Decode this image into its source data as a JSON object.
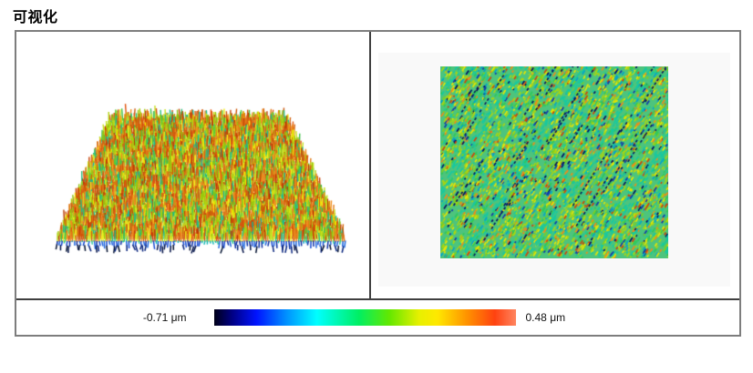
{
  "page": {
    "title": "可视化"
  },
  "color_scale": {
    "min_label": "-0.71 μm",
    "max_label": "0.48 μm",
    "stops": [
      {
        "pos": 0,
        "color": "#000018"
      },
      {
        "pos": 6,
        "color": "#000085"
      },
      {
        "pos": 14,
        "color": "#0013ff"
      },
      {
        "pos": 24,
        "color": "#0092ff"
      },
      {
        "pos": 34,
        "color": "#00ffff"
      },
      {
        "pos": 48,
        "color": "#00ef62"
      },
      {
        "pos": 58,
        "color": "#63e800"
      },
      {
        "pos": 68,
        "color": "#e8f000"
      },
      {
        "pos": 74,
        "color": "#ffe800"
      },
      {
        "pos": 84,
        "color": "#ff9000"
      },
      {
        "pos": 93,
        "color": "#ff4210"
      },
      {
        "pos": 100,
        "color": "#ff8560"
      }
    ]
  },
  "chart_data": [
    {
      "id": "surface-3d",
      "type": "surface_3d",
      "title": "3D pseudo-color view of surface topography",
      "description": "Perspective (trapezoid) render of a dense spiky rough surface; body mostly yellow-green with orange-red peaks and scattered teal; deep blue/navy pits hang below the front edge.",
      "z_min_um": -0.71,
      "z_max_um": 0.48,
      "units": "μm",
      "colormap": "rainbow: dark-navy, blue, cyan, green, yellow, orange, red",
      "palette": {
        "yellow_green": [
          "#b2d412",
          "#9eca0a",
          "#c6e11e",
          "#8fc310"
        ],
        "green_teal": [
          "#3fbf48",
          "#29bd7b",
          "#16bb96",
          "#57ca36"
        ],
        "yellow": [
          "#eae600",
          "#f2ef1e"
        ],
        "orange": [
          "#e27a16",
          "#d3620e",
          "#f18e1e",
          "#cc5207"
        ],
        "red": [
          "#c64106",
          "#e0540e",
          "#b93a05"
        ],
        "blue_light": [
          "#12b9b9",
          "#2cc795",
          "#0a9fd0"
        ],
        "blue_mid": [
          "#1449d2",
          "#0b2fa6",
          "#1e66e0"
        ],
        "blue_deep": [
          "#021247",
          "#001030",
          "#06227c"
        ]
      }
    },
    {
      "id": "height-map-2d",
      "type": "heatmap",
      "title": "2D pseudo-color height map",
      "description": "Top-down speckled texture in green/teal/yellow-green with yellow, orange and red patches; dark navy diagonal scratch streaks run from lower-left to upper-right.",
      "z_min_um": -0.71,
      "z_max_um": 0.48,
      "units": "μm",
      "colormap": "rainbow: dark-navy, blue, cyan, green, yellow, orange, red",
      "base_color": "#4dc47d",
      "scratch_color": "#06195e",
      "palette": [
        {
          "color": "#a9d513",
          "w": 0.24
        },
        {
          "color": "#e9e500",
          "w": 0.13
        },
        {
          "color": "#17c9a1",
          "w": 0.15
        },
        {
          "color": "#2fc95a",
          "w": 0.12
        },
        {
          "color": "#7fd01e",
          "w": 0.08
        },
        {
          "color": "#05a3cb",
          "w": 0.06
        },
        {
          "color": "#f18a17",
          "w": 0.08
        },
        {
          "color": "#d24307",
          "w": 0.05
        },
        {
          "color": "#1239ab",
          "w": 0.05
        },
        {
          "color": "#021263",
          "w": 0.04
        }
      ]
    }
  ]
}
